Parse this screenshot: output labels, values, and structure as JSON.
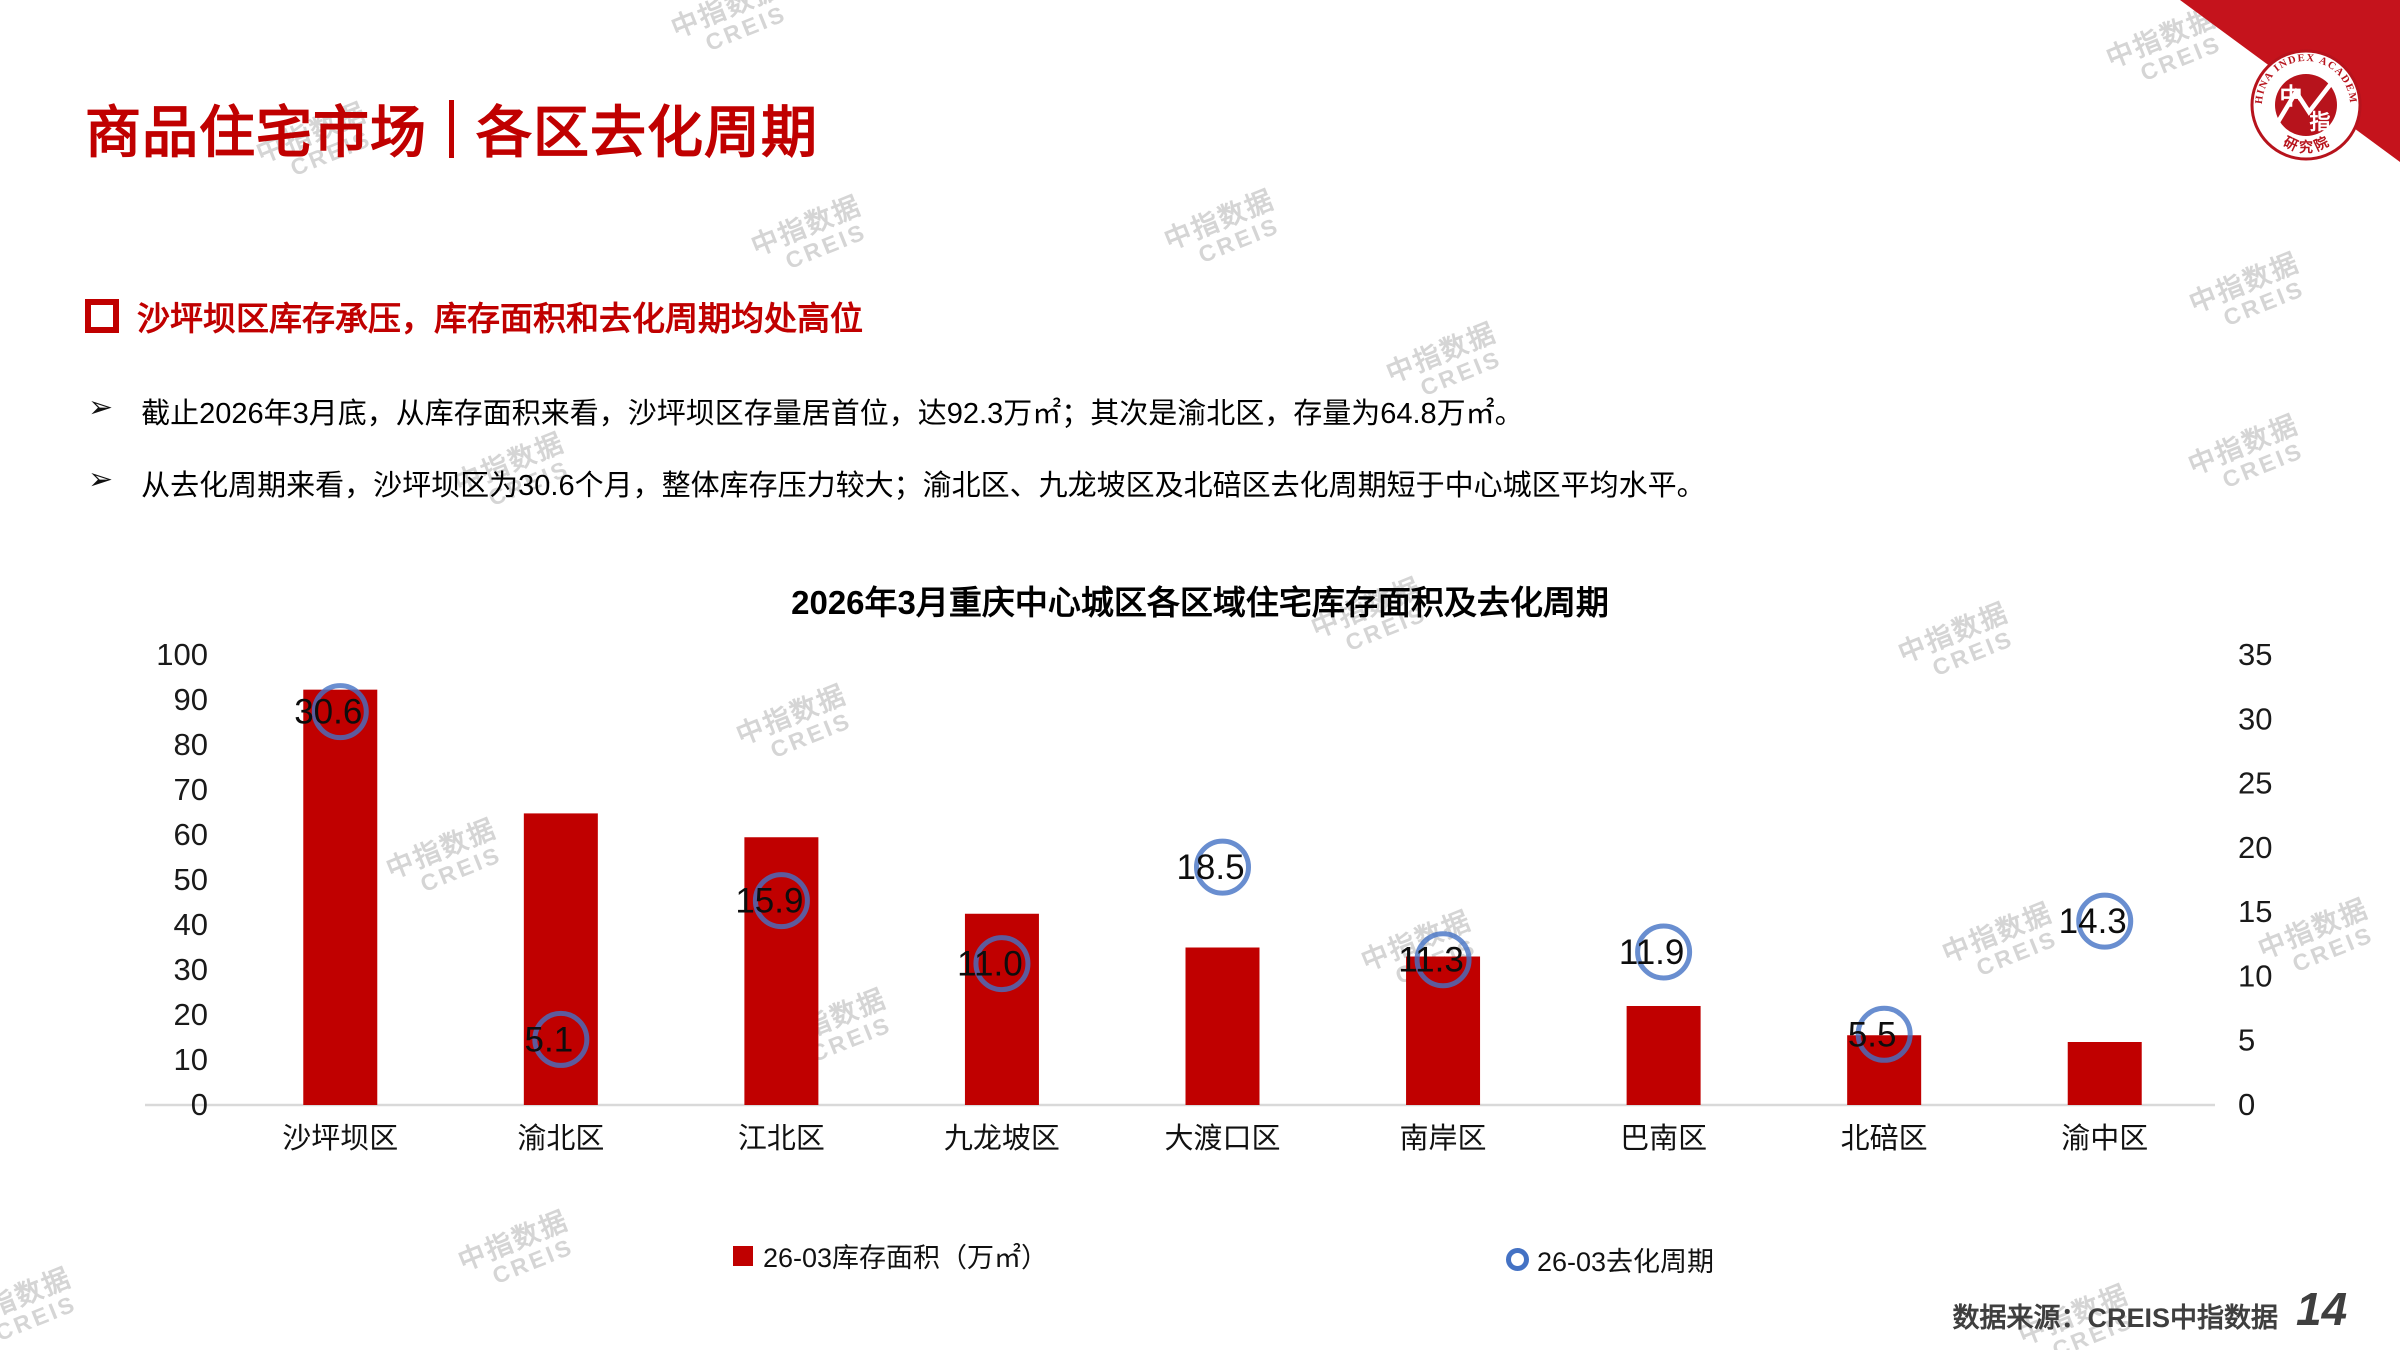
{
  "page": {
    "header": {
      "title_part1": "商品住宅市场",
      "title_part2": "各区去化周期"
    },
    "headline": "沙坪坝区库存承压，库存面积和去化周期均处高位",
    "bullets": [
      "截止2026年3月底，从库存面积来看，沙坪坝区存量居首位，达92.3万㎡；其次是渝北区，存量为64.8万㎡。",
      "从去化周期来看，沙坪坝区为30.6个月，整体库存压力较大；渝北区、九龙坡区及北碚区去化周期短于中心城区平均水平。"
    ],
    "footer": {
      "source": "数据来源：CREIS中指数据",
      "page_number": "14"
    },
    "watermark_text": {
      "line1": "中指数据",
      "line2": "CREIS"
    },
    "logo": {
      "arc_text": "CHINA INDEX ACADEMY",
      "seal_char1": "中",
      "seal_char2": "指",
      "bottom_text": "研 究 院"
    },
    "colors": {
      "brand_red": "#c00000",
      "marker_blue": "#4472c4",
      "watermark_gray": "#d5d5d5",
      "footer_gray": "#3f3f3f",
      "axis_line_gray": "#d9d9d9"
    }
  },
  "chart_data": {
    "type": "bar",
    "title": "2026年3月重庆中心城区各区域住宅库存面积及去化周期",
    "categories": [
      "沙坪坝区",
      "渝北区",
      "江北区",
      "九龙坡区",
      "大渡口区",
      "南岸区",
      "巴南区",
      "北碚区",
      "渝中区"
    ],
    "series": [
      {
        "name": "26-03库存面积（万㎡）",
        "type": "bar",
        "axis": "left",
        "color": "#c00000",
        "values": [
          92.3,
          64.8,
          59.5,
          42.5,
          35,
          33,
          22,
          15.5,
          14
        ]
      },
      {
        "name": "26-03去化周期",
        "type": "scatter",
        "marker": "circle-outline",
        "axis": "right",
        "color": "#4472c4",
        "values": [
          30.6,
          5.1,
          15.9,
          11.0,
          18.5,
          11.3,
          11.9,
          5.5,
          14.3
        ],
        "labels": [
          "30.6",
          "5.1",
          "15.9",
          "11.0",
          "18.5",
          "11.3",
          "11.9",
          "5.5",
          "14.3"
        ]
      }
    ],
    "left_axis": {
      "min": 0,
      "max": 100,
      "ticks": [
        0,
        10,
        20,
        30,
        40,
        50,
        60,
        70,
        80,
        90,
        100
      ]
    },
    "right_axis": {
      "min": 0,
      "max": 35,
      "ticks": [
        0,
        5,
        10,
        15,
        20,
        25,
        30,
        35
      ]
    },
    "grid": false,
    "legend_position": "bottom",
    "units": {
      "bars": "万㎡",
      "markers": "个月"
    }
  }
}
